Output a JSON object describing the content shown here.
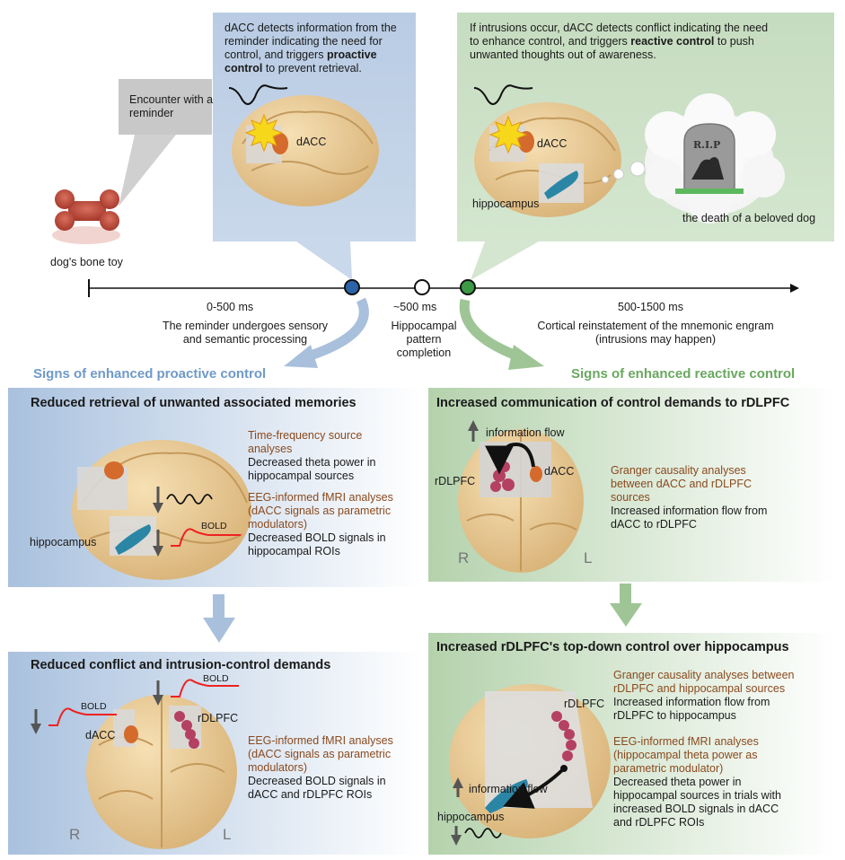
{
  "reminder": {
    "bubble_line1": "Encounter with a",
    "bubble_line2": "reminder",
    "object_label": "dog's bone toy"
  },
  "proactive_box": {
    "line1": "dACC detects information from the",
    "line2": "reminder indicating the need for",
    "line3_a": "control, and triggers ",
    "line3_b": "proactive",
    "line4_b": "control",
    "line4_a": " to prevent retrieval.",
    "dacc_label": "dACC"
  },
  "reactive_box": {
    "line1": "If intrusions occur, dACC detects conflict indicating the need",
    "line2": "to enhance control, and triggers ",
    "line2_b": "reactive control",
    "line2_c": " to push",
    "line3": "unwanted thoughts out of awareness.",
    "dacc_label": "dACC",
    "hippo_label": "hippocampus",
    "memory_label": "the death of a beloved dog",
    "tomb_text": "R.I.P"
  },
  "timeline": {
    "phase1_time": "0-500 ms",
    "phase1_desc1": "The reminder undergoes sensory",
    "phase1_desc2": "and semantic processing",
    "phase2_time": "~500 ms",
    "phase2_desc1": "Hippocampal",
    "phase2_desc2": "pattern",
    "phase2_desc3": "completion",
    "phase3_time": "500-1500 ms",
    "phase3_desc1": "Cortical reinstatement of the mnemonic engram",
    "phase3_desc2": "(intrusions may happen)"
  },
  "sections": {
    "proactive_heading": "Signs of enhanced proactive control",
    "reactive_heading": "Signs of enhanced reactive control"
  },
  "panel_a": {
    "title": "Reduced retrieval of unwanted associated memories",
    "m1_title1": "Time-frequency source",
    "m1_title2": "analyses",
    "m1_desc1": "Decreased theta power in",
    "m1_desc2": "hippocampal sources",
    "m2_title1": "EEG-informed fMRI analyses",
    "m2_title2": "(dACC signals as parametric",
    "m2_title3": "modulators)",
    "m2_desc1": "Decreased BOLD signals in",
    "m2_desc2": "hippocampal ROIs",
    "hippo_label": "hippocampus",
    "bold_label": "BOLD"
  },
  "panel_b": {
    "title": "Reduced conflict and intrusion-control demands",
    "m1_title1": "EEG-informed fMRI analyses",
    "m1_title2": "(dACC signals as parametric",
    "m1_title3": "modulators)",
    "m1_desc1": "Decreased BOLD signals in",
    "m1_desc2": "dACC and rDLPFC ROIs",
    "bold_label1": "BOLD",
    "bold_label2": "BOLD",
    "dacc_label": "dACC",
    "rdlpfc_label": "rDLPFC",
    "r_label": "R",
    "l_label": "L"
  },
  "panel_c": {
    "title": "Increased communication of control demands to rDLPFC",
    "flow_label": "information flow",
    "rdlpfc_label": "rDLPFC",
    "dacc_label": "dACC",
    "r_label": "R",
    "l_label": "L",
    "m1_title1": "Granger causality analyses",
    "m1_title2": "between dACC and rDLPFC",
    "m1_title3": "sources",
    "m1_desc1": "Increased information flow from",
    "m1_desc2": "dACC to rDLPFC"
  },
  "panel_d": {
    "title": "Increased rDLPFC's top-down control over hippocampus",
    "rdlpfc_label": "rDLPFC",
    "flow_label": "information flow",
    "hippo_label": "hippocampus",
    "m1_title1": "Granger causality analyses between",
    "m1_title2": "rDLPFC and hippocampal sources",
    "m1_desc1": "Increased information flow from",
    "m1_desc2": "rDLPFC to hippocampus",
    "m2_title1": "EEG-informed fMRI analyses",
    "m2_title2": "(hippocampal theta power as",
    "m2_title3": "parametric modulator)",
    "m2_desc1": "Decreased theta power in",
    "m2_desc2": "hippocampal sources in trials with",
    "m2_desc3": "increased BOLD signals in dACC",
    "m2_desc4": "and rDLPFC ROIs"
  }
}
